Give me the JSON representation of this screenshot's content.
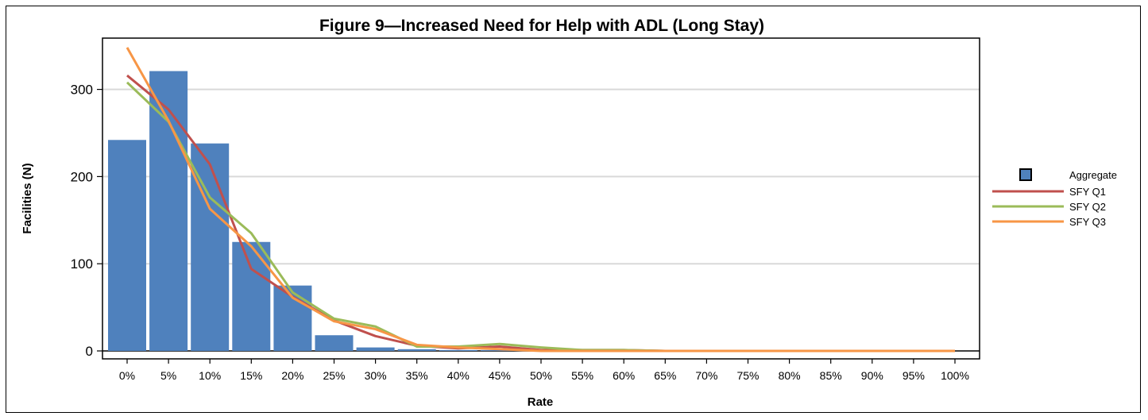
{
  "chart_data": {
    "type": "bar",
    "title": "Figure 9—Increased Need for Help with ADL (Long Stay)",
    "xlabel": "Rate",
    "ylabel": "Facilities (N)",
    "categories": [
      "0%",
      "5%",
      "10%",
      "15%",
      "20%",
      "25%",
      "30%",
      "35%",
      "40%",
      "45%",
      "50%",
      "55%",
      "60%",
      "65%",
      "70%",
      "75%",
      "80%",
      "85%",
      "90%",
      "95%",
      "100%"
    ],
    "yticks": [
      "0",
      "100",
      "200",
      "300"
    ],
    "ylim": [
      0,
      355
    ],
    "grid": true,
    "legend_position": "right",
    "bar_series": {
      "name": "Aggregate",
      "color": "#4f81bd",
      "values": [
        242,
        321,
        238,
        125,
        75,
        18,
        4,
        2,
        1,
        1,
        0,
        0,
        0,
        0,
        0,
        0,
        0,
        0,
        0,
        0,
        0
      ]
    },
    "line_series": [
      {
        "name": "SFY Q1",
        "color": "#c0504d",
        "values": [
          316,
          277,
          214,
          94,
          62,
          35,
          17,
          6,
          3,
          5,
          1,
          1,
          1,
          0,
          0,
          0,
          0,
          0,
          0,
          0,
          0
        ]
      },
      {
        "name": "SFY Q2",
        "color": "#9bbb59",
        "values": [
          308,
          263,
          176,
          135,
          67,
          37,
          28,
          5,
          5,
          8,
          4,
          1,
          1,
          0,
          0,
          0,
          0,
          0,
          0,
          0,
          0
        ]
      },
      {
        "name": "SFY Q3",
        "color": "#f79646",
        "values": [
          348,
          264,
          163,
          120,
          61,
          34,
          25,
          7,
          4,
          2,
          0,
          0,
          0,
          0,
          0,
          0,
          0,
          0,
          0,
          0,
          0
        ]
      }
    ]
  }
}
